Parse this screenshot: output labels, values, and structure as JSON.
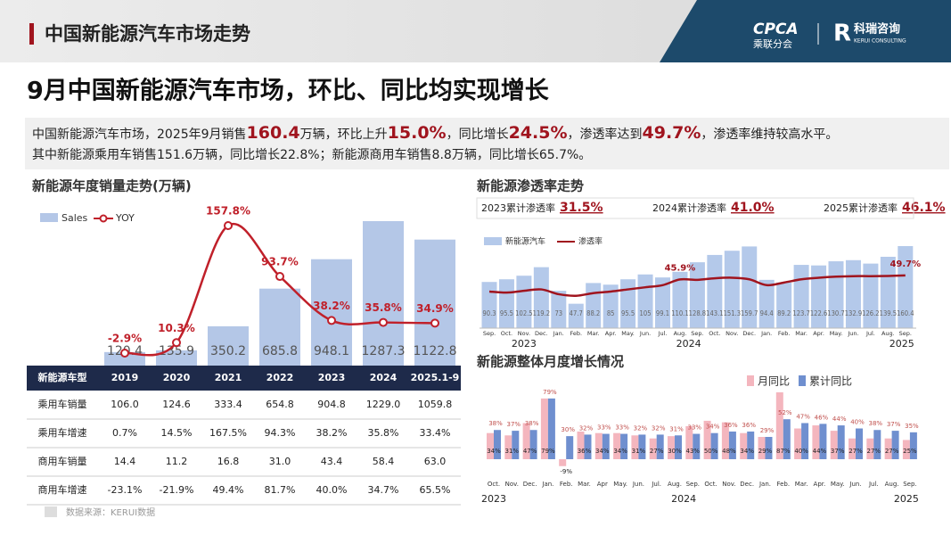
{
  "header": {
    "title": "中国新能源汽车市场走势",
    "logo_cpca": "CPCA",
    "logo_cpca_cn": "乘联分会",
    "logo_kerui": "科瑞咨询",
    "logo_kerui_en": "KERUI CONSULTING"
  },
  "headline": "9月中国新能源汽车市场，环比、同比均实现增长",
  "summary": {
    "line1": [
      "中国新能源汽车市场，2025年9月销售",
      "160.4",
      "万辆，环比上升",
      "15.0%",
      "，同比增长",
      "24.5%",
      "，渗透率达到",
      "49.7%",
      "，渗透率维持较高水平。"
    ],
    "line2": "其中新能源乘用车销售151.6万辆，同比增长22.8%；新能源商用车销售8.8万辆，同比增长65.7%。"
  },
  "table": {
    "header": [
      "新能源车型",
      "2019",
      "2020",
      "2021",
      "2022",
      "2023",
      "2024",
      "2025.1-9"
    ],
    "rows": [
      [
        "乘用车销量",
        "106.0",
        "124.6",
        "333.4",
        "654.8",
        "904.8",
        "1229.0",
        "1059.8"
      ],
      [
        "乘用车增速",
        "0.7%",
        "14.5%",
        "167.5%",
        "94.3%",
        "38.2%",
        "35.8%",
        "33.4%"
      ],
      [
        "商用车销量",
        "14.4",
        "11.2",
        "16.8",
        "31.0",
        "43.4",
        "58.4",
        "63.0"
      ],
      [
        "商用车增速",
        "-23.1%",
        "-21.9%",
        "49.4%",
        "81.7%",
        "40.0%",
        "34.7%",
        "65.5%"
      ]
    ]
  },
  "source": "数据来源：KERUI数据",
  "chart_data": [
    {
      "type": "bar_line",
      "title": "新能源年度销量走势(万辆)",
      "series": [
        {
          "name": "Sales",
          "type": "bar",
          "color": "#b4c7e7",
          "values": [
            120.4,
            135.9,
            350.2,
            685.8,
            948.1,
            1287.3,
            1122.8
          ]
        },
        {
          "name": "YOY",
          "type": "line",
          "axis": "y2",
          "color": "#c0202a",
          "values": [
            -2.9,
            10.3,
            157.8,
            93.7,
            38.2,
            35.8,
            34.9
          ],
          "value_labels": [
            "-2.9%",
            "10.3%",
            "157.8%",
            "93.7%",
            "38.2%",
            "35.8%",
            "34.9%"
          ]
        }
      ]
    },
    {
      "type": "bar_line",
      "title": "新能源渗透率走势",
      "cumulative": [
        {
          "label": "2023累计渗透率",
          "value": "31.5%"
        },
        {
          "label": "2024累计渗透率",
          "value": "41.0%"
        },
        {
          "label": "2025累计渗透率",
          "value": "46.1%"
        }
      ],
      "categories": [
        "Sep.",
        "Oct.",
        "Nov.",
        "Dec.",
        "Jan.",
        "Feb.",
        "Mar.",
        "Apr.",
        "May.",
        "Jun.",
        "Jul.",
        "Aug.",
        "Sep.",
        "Oct.",
        "Nov.",
        "Dec.",
        "Jan.",
        "Feb.",
        "Mar.",
        "Apr.",
        "May.",
        "Jun.",
        "Jul.",
        "Aug.",
        "Sep."
      ],
      "year_labels": [
        "2023",
        "2024",
        "2025"
      ],
      "series": [
        {
          "name": "新能源汽车",
          "type": "bar",
          "color": "#b4c9ea",
          "values": [
            90.3,
            95.5,
            102.5,
            119.2,
            73.0,
            47.7,
            88.2,
            85.0,
            95.5,
            105.0,
            99.1,
            110.1,
            128.8,
            143.1,
            151.3,
            159.7,
            94.4,
            89.2,
            123.7,
            122.6,
            130.7,
            132.9,
            126.2,
            139.5,
            160.4
          ]
        },
        {
          "name": "渗透率",
          "type": "line",
          "axis": "y2",
          "color": "#a0141e",
          "values": [
            34.5,
            33.5,
            35.2,
            36.5,
            32.0,
            30.5,
            33.0,
            34.5,
            36.5,
            38.5,
            40.5,
            45.9,
            45.5,
            47.0,
            47.5,
            46.0,
            40.5,
            43.0,
            46.0,
            47.5,
            48.5,
            49.0,
            49.0,
            49.2,
            49.7
          ],
          "value_labels": [
            null,
            null,
            null,
            null,
            null,
            null,
            null,
            null,
            null,
            null,
            null,
            "45.9%",
            null,
            null,
            null,
            null,
            null,
            null,
            null,
            null,
            null,
            null,
            null,
            null,
            "49.7%"
          ]
        }
      ]
    },
    {
      "type": "grouped_bar",
      "title": "新能源整体月度增长情况",
      "categories": [
        "Oct.",
        "Nov.",
        "Dec.",
        "Jan.",
        "Feb.",
        "Mar.",
        "Apr",
        "May.",
        "Jun.",
        "Jul.",
        "Aug.",
        "Sep.",
        "Oct.",
        "Nov.",
        "Dec.",
        "Jan.",
        "Feb.",
        "Mar.",
        "Apr.",
        "May.",
        "Jun.",
        "Jul.",
        "Aug.",
        "Sep."
      ],
      "year_labels": [
        "2023",
        "2024",
        "2025"
      ],
      "series": [
        {
          "name": "月同比",
          "color": "#f4b6be",
          "values": [
            34,
            31,
            47,
            79,
            -9,
            36,
            34,
            34,
            31,
            27,
            30,
            43,
            50,
            48,
            34,
            29,
            87,
            40,
            44,
            37,
            27,
            27,
            27,
            25
          ],
          "value_labels": [
            "34%",
            "31%",
            "47%",
            "79%",
            "-9%",
            "36%",
            "34%",
            "34%",
            "31%",
            "27%",
            "30%",
            "43%",
            "50%",
            "48%",
            "34%",
            "29%",
            "87%",
            "40%",
            "44%",
            "37%",
            "27%",
            "27%",
            "27%",
            "25%"
          ]
        },
        {
          "name": "累计同比",
          "color": "#6f8fcf",
          "values": [
            38,
            37,
            38,
            79,
            30,
            32,
            33,
            33,
            32,
            32,
            31,
            33,
            34,
            36,
            36,
            29,
            52,
            47,
            46,
            44,
            40,
            38,
            37,
            35
          ],
          "value_labels": [
            "38%",
            "37%",
            "38%",
            "79%",
            "30%",
            "32%",
            "33%",
            "33%",
            "32%",
            "32%",
            "31%",
            "33%",
            "34%",
            "36%",
            "36%",
            "29%",
            "52%",
            "47%",
            "46%",
            "44%",
            "40%",
            "38%",
            "37%",
            "35%"
          ]
        }
      ]
    }
  ]
}
